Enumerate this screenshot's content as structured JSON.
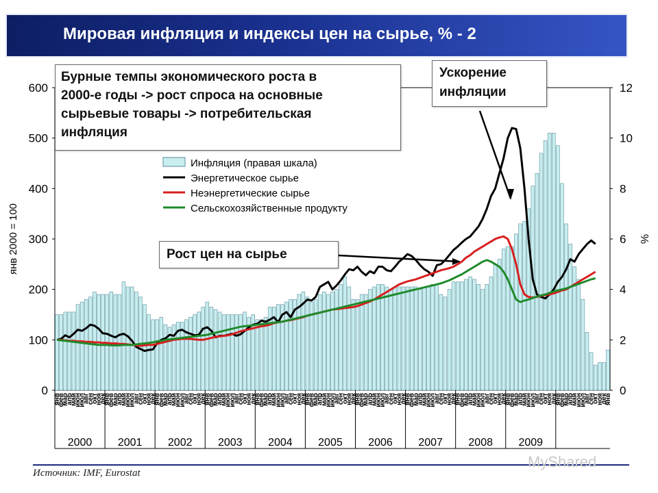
{
  "title": "Мировая инфляция и индексы цен на сырье, % - 2",
  "annotations": {
    "boom_lines": [
      "Бурные темпы экономического роста в",
      "2000-е годы -> рост спроса на основные",
      "сырьевые товары -> потребительская",
      "инфляция"
    ],
    "inflation_lines": [
      "Ускорение",
      "инфляции"
    ],
    "commodity": "Рост цен на сырье"
  },
  "source": "Источник: IMF, Eurostat",
  "watermark": "MyShared",
  "colors": {
    "bar_fill": "#c8eef0",
    "bar_stroke": "#5b8f9a",
    "energy": "#000000",
    "nonenergy": "#d81e1e",
    "agri": "#1f8a2a",
    "title_bg": "#1a3190"
  },
  "chart_data": {
    "type": "bar",
    "ylabel": "янв 2000 = 100",
    "y2label": "%",
    "ylim": [
      0,
      600
    ],
    "y2lim": [
      0,
      12
    ],
    "yticks": [
      0,
      100,
      200,
      300,
      400,
      500,
      600
    ],
    "y2ticks": [
      0,
      2,
      4,
      6,
      8,
      10,
      12
    ],
    "years": [
      "2000",
      "2001",
      "2002",
      "2003",
      "2004",
      "2005",
      "2006",
      "2007",
      "2008",
      "2009"
    ],
    "month_labels": [
      "янв",
      "фев",
      "мар",
      "апр",
      "май",
      "июн",
      "июл",
      "авг",
      "сен",
      "окт",
      "ноя",
      "дек"
    ],
    "legend": [
      "Инфляция (правая шкала)",
      "Энергетическое сырье",
      "Неэнергетические сырье",
      "Сельскохозяйственные продукту"
    ],
    "inflation_pct": [
      3.0,
      3.0,
      3.1,
      3.1,
      3.1,
      3.4,
      3.5,
      3.6,
      3.7,
      3.9,
      3.8,
      3.8,
      3.8,
      3.9,
      3.8,
      3.8,
      4.3,
      4.1,
      4.1,
      3.9,
      3.7,
      3.4,
      3.0,
      2.8,
      2.8,
      2.9,
      2.6,
      2.5,
      2.6,
      2.7,
      2.7,
      2.8,
      2.9,
      3.0,
      3.1,
      3.3,
      3.5,
      3.3,
      3.2,
      3.1,
      3.0,
      3.0,
      3.0,
      3.0,
      3.0,
      3.1,
      2.9,
      3.0,
      2.8,
      2.8,
      2.9,
      3.3,
      3.3,
      3.4,
      3.4,
      3.5,
      3.6,
      3.6,
      3.8,
      3.9,
      3.7,
      3.5,
      3.6,
      3.8,
      3.9,
      3.8,
      3.9,
      4.0,
      4.2,
      4.5,
      4.1,
      3.6,
      3.6,
      3.8,
      3.8,
      4.0,
      4.1,
      4.2,
      4.2,
      4.1,
      4.0,
      4.1,
      4.1,
      4.1,
      4.1,
      4.1,
      4.1,
      4.0,
      4.1,
      4.1,
      4.2,
      4.2,
      3.8,
      3.7,
      4.0,
      4.3,
      4.3,
      4.3,
      4.4,
      4.5,
      4.4,
      4.2,
      4.0,
      4.2,
      4.5,
      5.0,
      5.2,
      5.6,
      5.7,
      5.7,
      6.2,
      6.6,
      6.7,
      7.2,
      8.1,
      8.6,
      9.4,
      9.9,
      10.2,
      10.2,
      9.7,
      8.2,
      6.6,
      5.8,
      4.9,
      4.4,
      3.6,
      2.3,
      1.5,
      1.0,
      1.1,
      1.1,
      1.6
    ],
    "series": [
      {
        "name": "Энергетическое сырье",
        "values": [
          100,
          102,
          109,
          105,
          112,
          120,
          118,
          123,
          130,
          128,
          122,
          113,
          112,
          108,
          105,
          110,
          112,
          107,
          98,
          86,
          82,
          78,
          80,
          81,
          93,
          100,
          103,
          110,
          108,
          118,
          120,
          115,
          112,
          109,
          110,
          122,
          125,
          118,
          105,
          108,
          108,
          110,
          112,
          108,
          111,
          118,
          125,
          130,
          132,
          138,
          136,
          140,
          145,
          135,
          150,
          155,
          145,
          160,
          165,
          172,
          180,
          178,
          185,
          205,
          210,
          215,
          200,
          208,
          218,
          230,
          240,
          238,
          245,
          235,
          228,
          236,
          232,
          245,
          245,
          238,
          236,
          245,
          255,
          262,
          270,
          266,
          258,
          248,
          240,
          235,
          227,
          248,
          250,
          258,
          268,
          278,
          285,
          293,
          300,
          305,
          315,
          325,
          340,
          360,
          385,
          400,
          430,
          460,
          500,
          520,
          518,
          480,
          400,
          300,
          220,
          190,
          185,
          182,
          190,
          200,
          215,
          225,
          240,
          260,
          255,
          270,
          280,
          290,
          297,
          290
        ],
        "_": 0
      },
      {
        "name": "Неэнергетические сырье",
        "values": [
          100,
          100,
          99,
          98,
          98,
          97,
          97,
          96,
          96,
          95,
          95,
          94,
          94,
          93,
          93,
          92,
          92,
          91,
          90,
          89,
          88,
          89,
          90,
          90,
          92,
          94,
          96,
          98,
          100,
          101,
          102,
          102,
          102,
          101,
          100,
          100,
          102,
          104,
          106,
          107,
          108,
          109,
          111,
          114,
          117,
          119,
          121,
          123,
          125,
          127,
          128,
          130,
          133,
          135,
          136,
          138,
          139,
          141,
          143,
          145,
          148,
          150,
          152,
          154,
          156,
          158,
          160,
          161,
          162,
          163,
          164,
          165,
          167,
          170,
          173,
          176,
          180,
          185,
          190,
          195,
          200,
          205,
          210,
          213,
          216,
          218,
          220,
          223,
          226,
          229,
          232,
          235,
          238,
          240,
          242,
          245,
          250,
          255,
          263,
          268,
          275,
          280,
          285,
          290,
          295,
          300,
          303,
          305,
          300,
          280,
          250,
          210,
          190,
          185,
          184,
          185,
          187,
          189,
          190,
          192,
          195,
          198,
          200,
          205,
          210,
          215,
          220,
          225,
          230,
          235
        ],
        "_": 0
      },
      {
        "name": "Сельскохозяйственные продукту",
        "values": [
          100,
          99,
          98,
          97,
          96,
          95,
          94,
          93,
          92,
          91,
          90,
          90,
          90,
          89,
          89,
          89,
          90,
          90,
          90,
          91,
          92,
          93,
          94,
          95,
          97,
          98,
          100,
          101,
          102,
          103,
          104,
          105,
          106,
          107,
          108,
          109,
          110,
          112,
          114,
          116,
          118,
          120,
          122,
          124,
          126,
          127,
          128,
          129,
          130,
          131,
          132,
          133,
          134,
          135,
          136,
          138,
          140,
          142,
          144,
          146,
          148,
          150,
          152,
          154,
          156,
          158,
          160,
          162,
          164,
          166,
          168,
          170,
          172,
          174,
          176,
          178,
          180,
          182,
          184,
          186,
          188,
          190,
          192,
          194,
          196,
          198,
          200,
          202,
          204,
          206,
          208,
          210,
          212,
          215,
          218,
          222,
          226,
          230,
          235,
          240,
          245,
          250,
          255,
          258,
          255,
          250,
          245,
          235,
          220,
          200,
          180,
          175,
          178,
          180,
          183,
          186,
          188,
          190,
          193,
          196,
          198,
          200,
          202,
          205,
          208,
          211,
          214,
          217,
          220,
          222
        ],
        "_": 0
      }
    ]
  }
}
